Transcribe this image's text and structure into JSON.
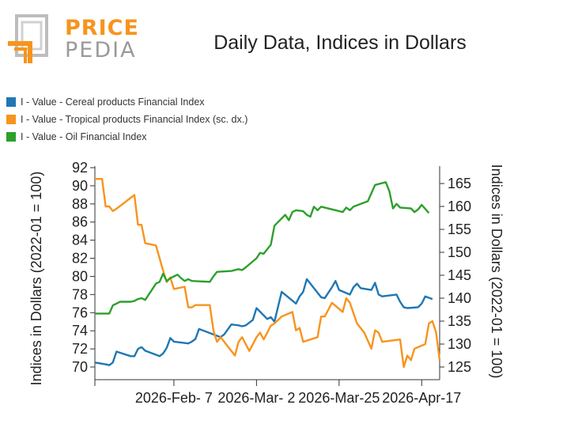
{
  "logo": {
    "word1": "PRICE",
    "word2": "PEDIA"
  },
  "chart_data": {
    "type": "line",
    "title": "Daily Data, Indices in Dollars",
    "ylabel_left": "Indices in Dollars (2022-01 = 100)",
    "ylabel_right": "Indices in Dollars (2022-01 = 100)",
    "legend_position": "top-left",
    "grid": false,
    "x_ticks": [
      "2026-Feb- 7",
      "2026-Mar- 2",
      "2026-Mar-25",
      "2026-Apr-17"
    ],
    "y_left": {
      "ticks": [
        70,
        72,
        74,
        76,
        78,
        80,
        82,
        84,
        86,
        88,
        90,
        92
      ],
      "ylim": [
        69,
        92
      ]
    },
    "y_right": {
      "ticks": [
        125,
        130,
        135,
        140,
        145,
        150,
        155,
        160,
        165
      ],
      "ylim": [
        123,
        169
      ]
    },
    "series": [
      {
        "name": "I - Value - Cereal products Financial Index",
        "color": "#1f77b4",
        "axis": "left",
        "values": [
          [
            "2026-01-16",
            70.5
          ],
          [
            "2026-01-19",
            70.3
          ],
          [
            "2026-01-20",
            70.2
          ],
          [
            "2026-01-21",
            70.5
          ],
          [
            "2026-01-22",
            71.7
          ],
          [
            "2026-01-26",
            71.2
          ],
          [
            "2026-01-27",
            71.2
          ],
          [
            "2026-01-28",
            72.0
          ],
          [
            "2026-01-29",
            72.2
          ],
          [
            "2026-01-30",
            71.8
          ],
          [
            "2026-02-03",
            71.2
          ],
          [
            "2026-02-04",
            71.5
          ],
          [
            "2026-02-05",
            72.1
          ],
          [
            "2026-02-06",
            73.2
          ],
          [
            "2026-02-07",
            72.8
          ],
          [
            "2026-02-11",
            72.6
          ],
          [
            "2026-02-12",
            72.8
          ],
          [
            "2026-02-13",
            73.1
          ],
          [
            "2026-02-14",
            74.2
          ],
          [
            "2026-02-20",
            73.3
          ],
          [
            "2026-02-21",
            73.6
          ],
          [
            "2026-02-23",
            74.7
          ],
          [
            "2026-02-25",
            74.6
          ],
          [
            "2026-02-26",
            74.5
          ],
          [
            "2026-02-27",
            74.6
          ],
          [
            "2026-03-01",
            75.2
          ],
          [
            "2026-03-02",
            76.5
          ],
          [
            "2026-03-05",
            75.3
          ],
          [
            "2026-03-06",
            75.5
          ],
          [
            "2026-03-07",
            75.0
          ],
          [
            "2026-03-09",
            78.3
          ],
          [
            "2026-03-13",
            77.0
          ],
          [
            "2026-03-14",
            77.8
          ],
          [
            "2026-03-15",
            78.3
          ],
          [
            "2026-03-16",
            79.7
          ],
          [
            "2026-03-20",
            77.7
          ],
          [
            "2026-03-21",
            77.6
          ],
          [
            "2026-03-23",
            78.8
          ],
          [
            "2026-03-24",
            79.5
          ],
          [
            "2026-03-25",
            78.5
          ],
          [
            "2026-03-28",
            78.0
          ],
          [
            "2026-03-29",
            78.8
          ],
          [
            "2026-03-30",
            79.2
          ],
          [
            "2026-03-31",
            78.7
          ],
          [
            "2026-04-03",
            78.5
          ],
          [
            "2026-04-04",
            79.3
          ],
          [
            "2026-04-05",
            78.0
          ],
          [
            "2026-04-06",
            77.8
          ],
          [
            "2026-04-10",
            78.0
          ],
          [
            "2026-04-11",
            77.2
          ],
          [
            "2026-04-12",
            76.6
          ],
          [
            "2026-04-13",
            76.5
          ],
          [
            "2026-04-16",
            76.6
          ],
          [
            "2026-04-17",
            77.0
          ],
          [
            "2026-04-18",
            77.8
          ],
          [
            "2026-04-20",
            77.5
          ]
        ]
      },
      {
        "name": "I - Value - Tropical products Financial Index (sc. dx.)",
        "color": "#f7941d",
        "axis": "right",
        "values": [
          [
            "2026-01-16",
            166.0
          ],
          [
            "2026-01-18",
            166.0
          ],
          [
            "2026-01-19",
            160.0
          ],
          [
            "2026-01-20",
            160.0
          ],
          [
            "2026-01-21",
            159.0
          ],
          [
            "2026-01-22",
            159.5
          ],
          [
            "2026-01-27",
            162.5
          ],
          [
            "2026-01-28",
            156.0
          ],
          [
            "2026-01-29",
            156.0
          ],
          [
            "2026-01-30",
            152.0
          ],
          [
            "2026-02-02",
            151.5
          ],
          [
            "2026-02-04",
            146.0
          ],
          [
            "2026-02-05",
            143.5
          ],
          [
            "2026-02-06",
            144.5
          ],
          [
            "2026-02-07",
            142.0
          ],
          [
            "2026-02-10",
            142.5
          ],
          [
            "2026-02-11",
            138.0
          ],
          [
            "2026-02-12",
            138.0
          ],
          [
            "2026-02-13",
            138.5
          ],
          [
            "2026-02-17",
            138.5
          ],
          [
            "2026-02-18",
            133.0
          ],
          [
            "2026-02-19",
            130.5
          ],
          [
            "2026-02-20",
            131.5
          ],
          [
            "2026-02-24",
            127.5
          ],
          [
            "2026-02-25",
            130.5
          ],
          [
            "2026-02-26",
            131.5
          ],
          [
            "2026-02-28",
            128.5
          ],
          [
            "2026-03-02",
            131.5
          ],
          [
            "2026-03-03",
            132.5
          ],
          [
            "2026-03-04",
            131.0
          ],
          [
            "2026-03-05",
            132.5
          ],
          [
            "2026-03-06",
            134.0
          ],
          [
            "2026-03-07",
            134.5
          ],
          [
            "2026-03-09",
            136.0
          ],
          [
            "2026-03-12",
            137.0
          ],
          [
            "2026-03-13",
            133.0
          ],
          [
            "2026-03-14",
            133.5
          ],
          [
            "2026-03-15",
            130.5
          ],
          [
            "2026-03-19",
            131.5
          ],
          [
            "2026-03-20",
            136.0
          ],
          [
            "2026-03-21",
            136.0
          ],
          [
            "2026-03-23",
            139.0
          ],
          [
            "2026-03-26",
            137.0
          ],
          [
            "2026-03-27",
            140.0
          ],
          [
            "2026-03-28",
            139.0
          ],
          [
            "2026-03-30",
            134.5
          ],
          [
            "2026-04-01",
            132.5
          ],
          [
            "2026-04-03",
            129.0
          ],
          [
            "2026-04-04",
            133.0
          ],
          [
            "2026-04-05",
            132.5
          ],
          [
            "2026-04-06",
            130.5
          ],
          [
            "2026-04-11",
            131.0
          ],
          [
            "2026-04-12",
            125.0
          ],
          [
            "2026-04-13",
            127.5
          ],
          [
            "2026-04-14",
            126.5
          ],
          [
            "2026-04-15",
            129.0
          ],
          [
            "2026-04-18",
            130.0
          ],
          [
            "2026-04-19",
            134.5
          ],
          [
            "2026-04-20",
            135.0
          ],
          [
            "2026-04-21",
            132.5
          ],
          [
            "2026-04-22",
            126.5
          ]
        ]
      },
      {
        "name": "I - Value - Oil Financial Index",
        "color": "#2ca02c",
        "axis": "left",
        "values": [
          [
            "2026-01-16",
            75.9
          ],
          [
            "2026-01-20",
            75.9
          ],
          [
            "2026-01-21",
            76.8
          ],
          [
            "2026-01-22",
            77.0
          ],
          [
            "2026-01-23",
            77.2
          ],
          [
            "2026-01-26",
            77.2
          ],
          [
            "2026-01-27",
            77.3
          ],
          [
            "2026-01-28",
            77.5
          ],
          [
            "2026-01-29",
            77.6
          ],
          [
            "2026-01-30",
            77.4
          ],
          [
            "2026-02-02",
            79.2
          ],
          [
            "2026-02-03",
            79.4
          ],
          [
            "2026-02-04",
            80.3
          ],
          [
            "2026-02-05",
            79.5
          ],
          [
            "2026-02-06",
            79.8
          ],
          [
            "2026-02-07",
            80.0
          ],
          [
            "2026-02-08",
            80.2
          ],
          [
            "2026-02-09",
            79.8
          ],
          [
            "2026-02-10",
            79.5
          ],
          [
            "2026-02-11",
            79.7
          ],
          [
            "2026-02-12",
            79.5
          ],
          [
            "2026-02-17",
            79.4
          ],
          [
            "2026-02-18",
            80.0
          ],
          [
            "2026-02-19",
            80.5
          ],
          [
            "2026-02-23",
            80.6
          ],
          [
            "2026-02-25",
            80.8
          ],
          [
            "2026-02-26",
            80.7
          ],
          [
            "2026-02-27",
            81.0
          ],
          [
            "2026-03-02",
            82.0
          ],
          [
            "2026-03-03",
            82.6
          ],
          [
            "2026-03-04",
            82.5
          ],
          [
            "2026-03-06",
            83.5
          ],
          [
            "2026-03-07",
            85.6
          ],
          [
            "2026-03-10",
            86.8
          ],
          [
            "2026-03-11",
            86.2
          ],
          [
            "2026-03-12",
            87.1
          ],
          [
            "2026-03-13",
            87.3
          ],
          [
            "2026-03-15",
            87.2
          ],
          [
            "2026-03-16",
            86.8
          ],
          [
            "2026-03-17",
            86.6
          ],
          [
            "2026-03-18",
            87.7
          ],
          [
            "2026-03-19",
            87.3
          ],
          [
            "2026-03-20",
            87.7
          ],
          [
            "2026-03-23",
            87.4
          ],
          [
            "2026-03-26",
            87.1
          ],
          [
            "2026-03-27",
            87.6
          ],
          [
            "2026-03-28",
            87.3
          ],
          [
            "2026-03-29",
            87.7
          ],
          [
            "2026-04-02",
            88.3
          ],
          [
            "2026-04-04",
            90.1
          ],
          [
            "2026-04-06",
            90.3
          ],
          [
            "2026-04-07",
            90.4
          ],
          [
            "2026-04-08",
            89.4
          ],
          [
            "2026-04-09",
            87.5
          ],
          [
            "2026-04-10",
            88.0
          ],
          [
            "2026-04-11",
            87.6
          ],
          [
            "2026-04-14",
            87.5
          ],
          [
            "2026-04-15",
            87.1
          ],
          [
            "2026-04-16",
            87.4
          ],
          [
            "2026-04-17",
            87.9
          ],
          [
            "2026-04-19",
            87.0
          ]
        ]
      }
    ]
  }
}
